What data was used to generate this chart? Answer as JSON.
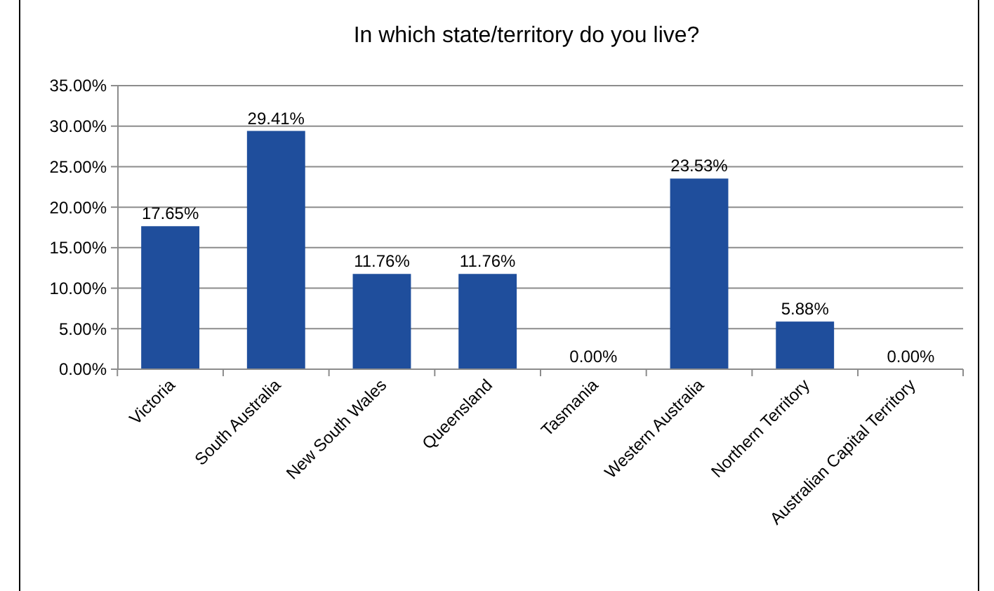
{
  "chart_data": {
    "type": "bar",
    "title": "In which state/territory do you live?",
    "categories": [
      "Victoria",
      "South Australia",
      "New South Wales",
      "Queensland",
      "Tasmania",
      "Western Australia",
      "Northern Territory",
      "Australian Capital Territory"
    ],
    "values": [
      17.65,
      29.41,
      11.76,
      11.76,
      0,
      23.53,
      5.88,
      0
    ],
    "value_labels": [
      "17.65%",
      "29.41%",
      "11.76%",
      "11.76%",
      "0.00%",
      "23.53%",
      "5.88%",
      "0.00%"
    ],
    "color": "#1f4e9c",
    "ylim": [
      0,
      35
    ],
    "yticks": [
      {
        "value": 0,
        "label": "0.00%"
      },
      {
        "value": 5,
        "label": "5.00%"
      },
      {
        "value": 10,
        "label": "10.00%"
      },
      {
        "value": 15,
        "label": "15.00%"
      },
      {
        "value": 20,
        "label": "20.00%"
      },
      {
        "value": 25,
        "label": "25.00%"
      },
      {
        "value": 30,
        "label": "30.00%"
      },
      {
        "value": 35,
        "label": "35.00%"
      }
    ],
    "grid": "y"
  }
}
